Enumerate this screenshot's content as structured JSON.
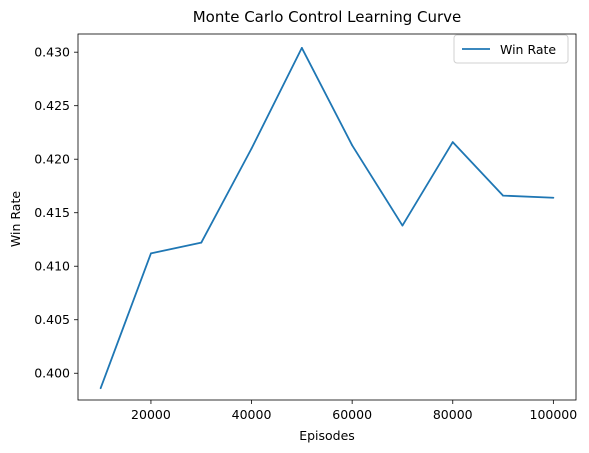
{
  "chart_data": {
    "type": "line",
    "title": "Monte Carlo Control Learning Curve",
    "xlabel": "Episodes",
    "ylabel": "Win Rate",
    "xlim": [
      5500,
      104500
    ],
    "ylim": [
      0.3975,
      0.4317
    ],
    "xticks": [
      20000,
      40000,
      60000,
      80000,
      100000
    ],
    "yticks": [
      0.4,
      0.405,
      0.41,
      0.415,
      0.42,
      0.425,
      0.43
    ],
    "grid": false,
    "legend": {
      "position": "top-right",
      "entries": [
        "Win Rate"
      ]
    },
    "series": [
      {
        "name": "Win Rate",
        "color": "#1f77b4",
        "x": [
          10000,
          20000,
          30000,
          40000,
          50000,
          60000,
          70000,
          80000,
          90000,
          100000
        ],
        "y": [
          0.3986,
          0.4112,
          0.4122,
          0.421,
          0.4304,
          0.4213,
          0.4138,
          0.4216,
          0.4166,
          0.4164
        ]
      }
    ]
  }
}
